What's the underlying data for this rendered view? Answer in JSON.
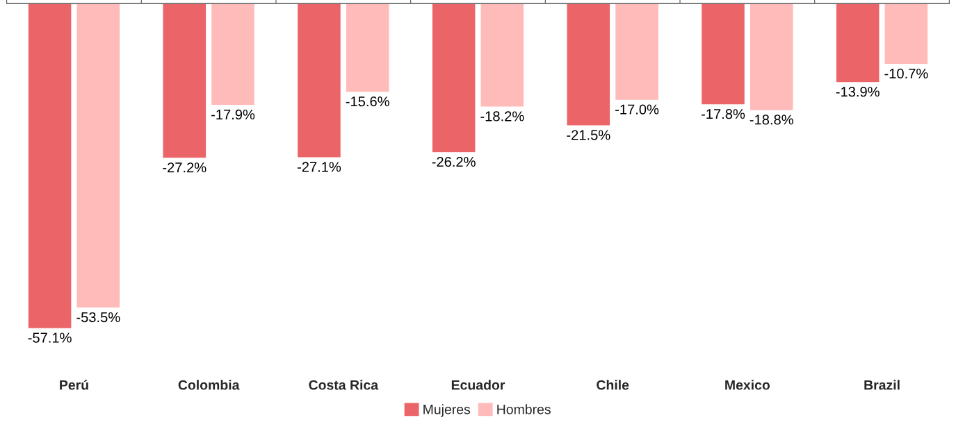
{
  "chart_data": {
    "type": "bar",
    "categories": [
      "Perú",
      "Colombia",
      "Costa Rica",
      "Ecuador",
      "Chile",
      "Mexico",
      "Brazil"
    ],
    "series": [
      {
        "name": "Mujeres",
        "color": "#eb6467",
        "values": [
          -57.1,
          -27.2,
          -27.1,
          -26.2,
          -21.5,
          -17.8,
          -13.9
        ],
        "value_labels": [
          "-57.1%",
          "-27.2%",
          "-27.1%",
          "-26.2%",
          "-21.5%",
          "-17.8%",
          "-13.9%"
        ]
      },
      {
        "name": "Hombres",
        "color": "#ffbaba",
        "values": [
          -53.5,
          -17.9,
          -15.6,
          -18.2,
          -17.0,
          -18.8,
          -10.7
        ],
        "value_labels": [
          "-53.5%",
          "-17.9%",
          "-15.6%",
          "-18.2%",
          "-17.0%",
          "-18.8%",
          "-10.7%"
        ]
      }
    ],
    "legend": "bottom",
    "grid": false,
    "tick_labels": "x"
  }
}
